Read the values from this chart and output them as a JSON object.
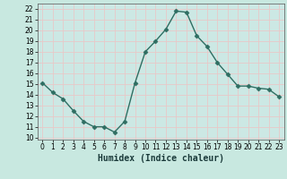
{
  "x": [
    0,
    1,
    2,
    3,
    4,
    5,
    6,
    7,
    8,
    9,
    10,
    11,
    12,
    13,
    14,
    15,
    16,
    17,
    18,
    19,
    20,
    21,
    22,
    23
  ],
  "y": [
    15.1,
    14.2,
    13.6,
    12.5,
    11.5,
    11.0,
    11.0,
    10.5,
    11.5,
    15.1,
    18.0,
    19.0,
    20.1,
    21.8,
    21.7,
    19.5,
    18.5,
    17.0,
    15.9,
    14.8,
    14.8,
    14.6,
    14.5,
    13.8
  ],
  "line_color": "#2e6e62",
  "marker": "D",
  "markersize": 2.5,
  "linewidth": 1.0,
  "xlabel": "Humidex (Indice chaleur)",
  "xlim": [
    -0.5,
    23.5
  ],
  "ylim": [
    9.8,
    22.5
  ],
  "yticks": [
    10,
    11,
    12,
    13,
    14,
    15,
    16,
    17,
    18,
    19,
    20,
    21,
    22
  ],
  "xticks": [
    0,
    1,
    2,
    3,
    4,
    5,
    6,
    7,
    8,
    9,
    10,
    11,
    12,
    13,
    14,
    15,
    16,
    17,
    18,
    19,
    20,
    21,
    22,
    23
  ],
  "bg_color": "#c8e8e0",
  "plot_bg_color": "#cce8e4",
  "grid_color": "#e8c8c8",
  "tick_fontsize": 5.5,
  "label_fontsize": 7
}
